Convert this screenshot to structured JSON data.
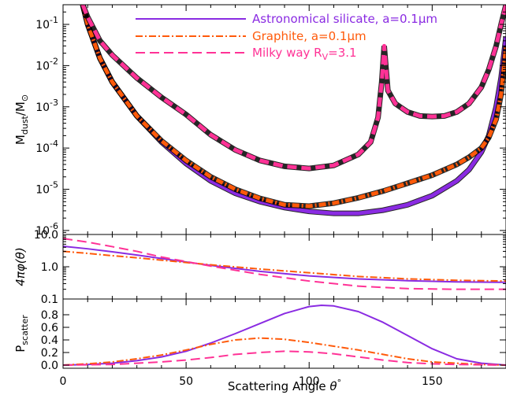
{
  "chart_data": [
    {
      "panel": "top",
      "type": "line",
      "ylabel": "M_dust/M_⊙",
      "ylabel_main": "M",
      "ylabel_sub": "dust",
      "ylabel_rest": "/M",
      "ylabel_symbol": "⊙",
      "yscale": "log",
      "xlim": [
        0,
        180
      ],
      "ylim": [
        8e-07,
        0.3
      ],
      "yticks": [
        {
          "value": 1e-06,
          "base": "10",
          "exp": "-6"
        },
        {
          "value": 1e-05,
          "base": "10",
          "exp": "-5"
        },
        {
          "value": 0.0001,
          "base": "10",
          "exp": "-4"
        },
        {
          "value": 0.001,
          "base": "10",
          "exp": "-3"
        },
        {
          "value": 0.01,
          "base": "10",
          "exp": "-2"
        },
        {
          "value": 0.1,
          "base": "10",
          "exp": "-1"
        }
      ],
      "legend_position": "top-right",
      "series": [
        {
          "name": "Astronomical silicate, a=0.1μm",
          "color": "#8a2be2",
          "style": "solid",
          "x": [
            8,
            10,
            15,
            20,
            30,
            40,
            50,
            60,
            70,
            80,
            90,
            100,
            110,
            120,
            130,
            140,
            150,
            160,
            165,
            170,
            173,
            176,
            178,
            180
          ],
          "y": [
            0.3,
            0.1,
            0.015,
            0.004,
            0.0006,
            0.00014,
            4.2e-05,
            1.6e-05,
            8e-06,
            5e-06,
            3.6e-06,
            2.9e-06,
            2.6e-06,
            2.6e-06,
            3.1e-06,
            4.2e-06,
            7e-06,
            1.6e-05,
            3e-05,
            8e-05,
            0.0002,
            0.001,
            0.005,
            0.05
          ]
        },
        {
          "name": "Graphite, a=0.1μm",
          "color": "#ff5a0a",
          "style": "dashdot",
          "x": [
            8,
            10,
            15,
            20,
            30,
            40,
            50,
            60,
            70,
            80,
            90,
            100,
            110,
            120,
            130,
            140,
            150,
            160,
            165,
            170,
            173,
            176,
            178,
            180
          ],
          "y": [
            0.3,
            0.1,
            0.015,
            0.004,
            0.0006,
            0.00015,
            5e-05,
            2e-05,
            1e-05,
            6e-06,
            4.2e-06,
            3.9e-06,
            4.6e-06,
            6.2e-06,
            9e-06,
            1.4e-05,
            2.2e-05,
            4e-05,
            6e-05,
            0.0001,
            0.00018,
            0.0005,
            0.002,
            0.03
          ]
        },
        {
          "name": "Milky way R_V=3.1",
          "label_main": "Milky way R",
          "label_sub": "V",
          "label_rest": "=3.1",
          "color": "#ff3296",
          "style": "dashed",
          "x": [
            8,
            10,
            15,
            20,
            30,
            40,
            50,
            60,
            70,
            80,
            90,
            100,
            110,
            120,
            125,
            128,
            129.5,
            130.5,
            132,
            135,
            140,
            145,
            150,
            155,
            160,
            165,
            170,
            173,
            176,
            178,
            180
          ],
          "y": [
            0.3,
            0.15,
            0.04,
            0.018,
            0.005,
            0.0017,
            0.00065,
            0.00021,
            9e-05,
            5e-05,
            3.6e-05,
            3.2e-05,
            3.8e-05,
            7e-05,
            0.00014,
            0.00055,
            0.004,
            0.03,
            0.0025,
            0.0012,
            0.00075,
            0.0006,
            0.00058,
            0.0006,
            0.00075,
            0.0012,
            0.003,
            0.008,
            0.03,
            0.1,
            0.3
          ]
        }
      ]
    },
    {
      "panel": "middle",
      "type": "line",
      "ylabel": "4πφ(θ)",
      "yscale": "log",
      "ylim": [
        0.1,
        10
      ],
      "yticks": [
        {
          "value": 0.1,
          "label": "0.1"
        },
        {
          "value": 1,
          "label": "1.0"
        },
        {
          "value": 10,
          "label": "10.0"
        }
      ],
      "series": [
        {
          "name": "Astronomical silicate, a=0.1μm",
          "color": "#8a2be2",
          "style": "solid",
          "x": [
            0,
            10,
            20,
            30,
            40,
            50,
            60,
            80,
            100,
            120,
            140,
            160,
            180
          ],
          "y": [
            4.3,
            3.6,
            2.9,
            2.3,
            1.8,
            1.4,
            1.1,
            0.72,
            0.52,
            0.42,
            0.37,
            0.34,
            0.33
          ]
        },
        {
          "name": "Graphite, a=0.1μm",
          "color": "#ff5a0a",
          "style": "dashdot",
          "x": [
            0,
            10,
            20,
            30,
            40,
            50,
            60,
            80,
            100,
            120,
            140,
            160,
            180
          ],
          "y": [
            3.0,
            2.6,
            2.2,
            1.9,
            1.6,
            1.35,
            1.15,
            0.85,
            0.65,
            0.5,
            0.42,
            0.38,
            0.36
          ]
        },
        {
          "name": "Milky way R_V=3.1",
          "color": "#ff3296",
          "style": "dashed",
          "x": [
            0,
            10,
            20,
            30,
            40,
            50,
            60,
            80,
            100,
            120,
            140,
            160,
            180
          ],
          "y": [
            7.5,
            5.8,
            4.2,
            3.0,
            2.0,
            1.45,
            1.05,
            0.58,
            0.36,
            0.25,
            0.21,
            0.2,
            0.2
          ]
        }
      ]
    },
    {
      "panel": "bottom",
      "type": "line",
      "ylabel": "P_scatter",
      "ylabel_main": "P",
      "ylabel_sub": "scatter",
      "xlabel": "Scattering Angle θ°",
      "xlabel_text": "Scattering Angle ",
      "xlabel_symbol": "θ",
      "xlabel_degree": "°",
      "xlim": [
        0,
        180
      ],
      "ylim": [
        -0.05,
        1.05
      ],
      "xticks": [
        {
          "value": 0,
          "label": "0"
        },
        {
          "value": 50,
          "label": "50"
        },
        {
          "value": 100,
          "label": "100"
        },
        {
          "value": 150,
          "label": "150"
        }
      ],
      "yticks": [
        {
          "value": 0.0,
          "label": "0.0"
        },
        {
          "value": 0.2,
          "label": "0.2"
        },
        {
          "value": 0.4,
          "label": "0.4"
        },
        {
          "value": 0.6,
          "label": "0.6"
        },
        {
          "value": 0.8,
          "label": "0.8"
        }
      ],
      "series": [
        {
          "name": "Astronomical silicate, a=0.1μm",
          "color": "#8a2be2",
          "style": "solid",
          "x": [
            0,
            10,
            20,
            30,
            40,
            50,
            60,
            70,
            80,
            90,
            100,
            105,
            110,
            120,
            130,
            140,
            150,
            160,
            170,
            180
          ],
          "y": [
            0.0,
            0.01,
            0.03,
            0.07,
            0.13,
            0.22,
            0.35,
            0.5,
            0.66,
            0.82,
            0.93,
            0.95,
            0.94,
            0.85,
            0.68,
            0.47,
            0.26,
            0.1,
            0.03,
            0.0
          ]
        },
        {
          "name": "Graphite, a=0.1μm",
          "color": "#ff5a0a",
          "style": "dashdot",
          "x": [
            0,
            10,
            20,
            30,
            40,
            50,
            60,
            70,
            80,
            90,
            100,
            110,
            120,
            130,
            140,
            150,
            160,
            170,
            180
          ],
          "y": [
            0.0,
            0.02,
            0.05,
            0.1,
            0.16,
            0.24,
            0.33,
            0.4,
            0.43,
            0.41,
            0.36,
            0.3,
            0.24,
            0.17,
            0.1,
            0.05,
            0.03,
            0.01,
            0.0
          ]
        },
        {
          "name": "Milky way R_V=3.1",
          "color": "#ff3296",
          "style": "dashed",
          "x": [
            0,
            10,
            20,
            30,
            40,
            50,
            60,
            70,
            80,
            90,
            100,
            110,
            120,
            130,
            140,
            150,
            160,
            170,
            180
          ],
          "y": [
            0.0,
            0.005,
            0.01,
            0.03,
            0.05,
            0.08,
            0.12,
            0.17,
            0.2,
            0.22,
            0.21,
            0.18,
            0.13,
            0.08,
            0.04,
            0.02,
            0.01,
            0.005,
            0.0
          ]
        }
      ]
    }
  ]
}
